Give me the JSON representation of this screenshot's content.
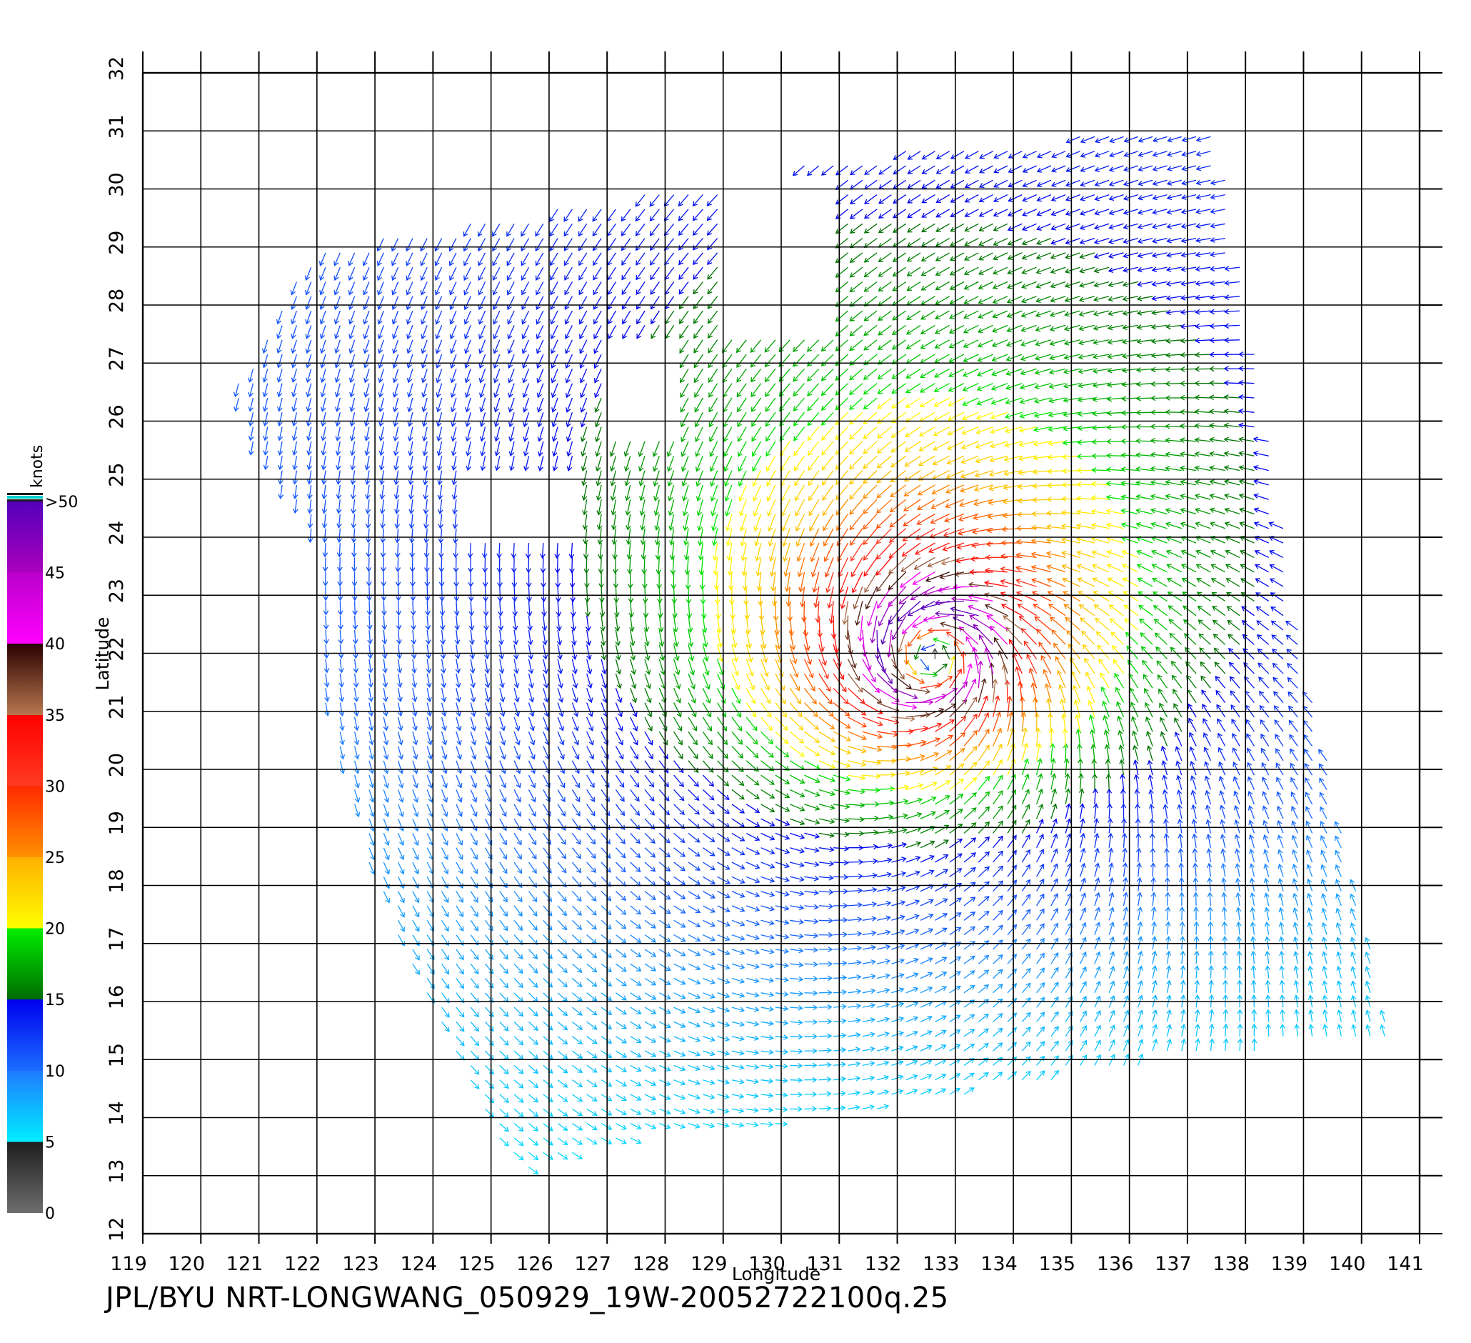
{
  "footer": {
    "label": "JPL/BYU  NRT-LONGWANG_050929_19W-20052722100q.25"
  },
  "chart_data": {
    "type": "vector-field",
    "title": "",
    "xlabel": "Longitude",
    "ylabel": "Latitude",
    "xlim": [
      119,
      141
    ],
    "ylim": [
      12,
      32
    ],
    "xticks": [
      119,
      120,
      121,
      122,
      123,
      124,
      125,
      126,
      127,
      128,
      129,
      130,
      131,
      132,
      133,
      134,
      135,
      136,
      137,
      138,
      139,
      140,
      141
    ],
    "yticks": [
      12,
      13,
      14,
      15,
      16,
      17,
      18,
      19,
      20,
      21,
      22,
      23,
      24,
      25,
      26,
      27,
      28,
      29,
      30,
      31,
      32
    ],
    "grid": true,
    "colorbar": {
      "label": "knots",
      "ticks": [
        "0",
        "5",
        "10",
        "15",
        "20",
        "25",
        "30",
        "35",
        "40",
        "45",
        ">50"
      ],
      "stops": [
        {
          "value": 0,
          "color": "#6e6e6e"
        },
        {
          "value": 5,
          "color": "#1e1e1e"
        },
        {
          "value": 5,
          "color": "#00eeff"
        },
        {
          "value": 10,
          "color": "#1e7bff"
        },
        {
          "value": 10,
          "color": "#1a6dff"
        },
        {
          "value": 15,
          "color": "#0000ee"
        },
        {
          "value": 15,
          "color": "#006b00"
        },
        {
          "value": 20,
          "color": "#00ee00"
        },
        {
          "value": 20,
          "color": "#ffff00"
        },
        {
          "value": 25,
          "color": "#ffb000"
        },
        {
          "value": 25,
          "color": "#ff9000"
        },
        {
          "value": 30,
          "color": "#ff2a00"
        },
        {
          "value": 30,
          "color": "#ff3a20"
        },
        {
          "value": 35,
          "color": "#ff0000"
        },
        {
          "value": 35,
          "color": "#b87850"
        },
        {
          "value": 40,
          "color": "#2a0000"
        },
        {
          "value": 40,
          "color": "#ff00ff"
        },
        {
          "value": 45,
          "color": "#bb00cc"
        },
        {
          "value": 45,
          "color": "#aa00bb"
        },
        {
          "value": 50,
          "color": "#5500bb"
        }
      ]
    },
    "vortex": {
      "center_lon": 132.6,
      "center_lat": 22.0,
      "max_wind_knots": 50
    },
    "swath_boundary": [
      [
        122.0,
        29.0
      ],
      [
        127.5,
        29.9
      ],
      [
        131.5,
        30.6
      ],
      [
        137.5,
        31.1
      ],
      [
        138.2,
        27.0
      ],
      [
        139.0,
        22.0
      ],
      [
        140.5,
        15.4
      ],
      [
        137.0,
        15.0
      ],
      [
        131.0,
        14.0
      ],
      [
        127.0,
        13.6
      ],
      [
        125.5,
        13.0
      ],
      [
        124.6,
        14.6
      ],
      [
        123.0,
        18.0
      ],
      [
        122.0,
        21.5
      ],
      [
        121.9,
        24.0
      ],
      [
        120.8,
        25.8
      ],
      [
        120.6,
        26.6
      ],
      [
        122.0,
        29.0
      ]
    ],
    "data_gaps": [
      {
        "lon": [
          129.0,
          131.0
        ],
        "lat": [
          27.6,
          30.2
        ]
      },
      {
        "lon": [
          127.0,
          128.3
        ],
        "lat": [
          25.9,
          27.6
        ]
      },
      {
        "lon": [
          124.6,
          126.4
        ],
        "lat": [
          24.0,
          25.2
        ]
      }
    ]
  }
}
